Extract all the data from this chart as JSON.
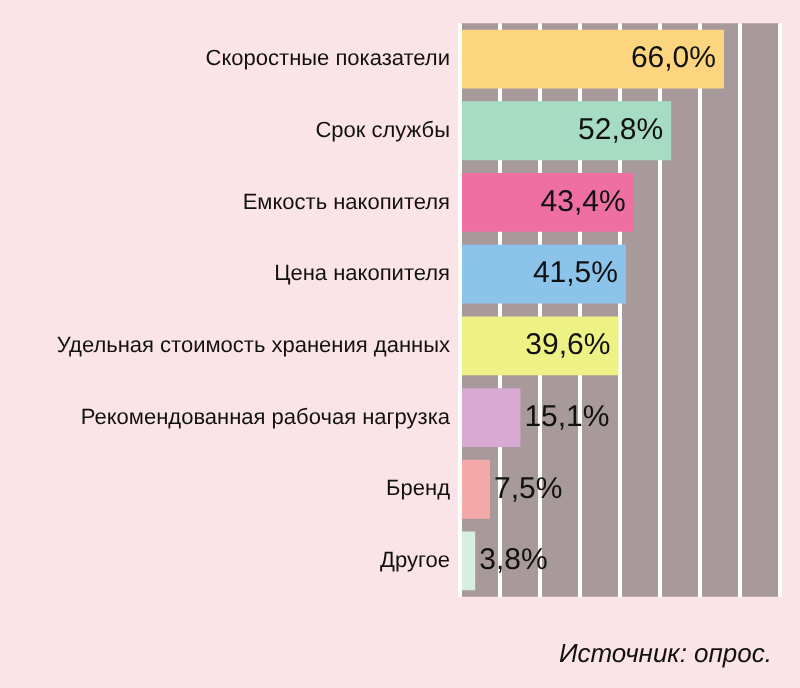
{
  "chart_data": {
    "type": "bar",
    "orientation": "horizontal",
    "categories": [
      "Скоростные показатели",
      "Срок службы",
      "Емкость накопителя",
      "Цена накопителя",
      "Удельная стоимость хранения данных",
      "Рекомендованная рабочая нагрузка",
      "Бренд",
      "Другое"
    ],
    "values": [
      66.0,
      52.8,
      43.4,
      41.5,
      39.6,
      15.1,
      7.5,
      3.8
    ],
    "colors": [
      "#fcd57e",
      "#a6dcc4",
      "#ef6fa2",
      "#8cc3ea",
      "#eef284",
      "#d7a9d3",
      "#f5a8a8",
      "#d6efde"
    ],
    "value_labels": [
      "66,0%",
      "52,8%",
      "43,4%",
      "41,5%",
      "39,6%",
      "15,1%",
      "7,5%",
      "3,8%"
    ],
    "xlim": [
      0,
      80
    ],
    "xticks": [
      {
        "value": 0,
        "label": null
      },
      {
        "value": 10,
        "label": null
      },
      {
        "value": 20,
        "label": null
      },
      {
        "value": 30,
        "label": null
      },
      {
        "value": 40,
        "label": null
      },
      {
        "value": 50,
        "label": null
      },
      {
        "value": 60,
        "label": null
      },
      {
        "value": 70,
        "label": null
      },
      {
        "value": 80,
        "label": null
      }
    ],
    "tick_labels": "y",
    "grid": "x",
    "annotations": [
      "Источник: опрос."
    ]
  }
}
